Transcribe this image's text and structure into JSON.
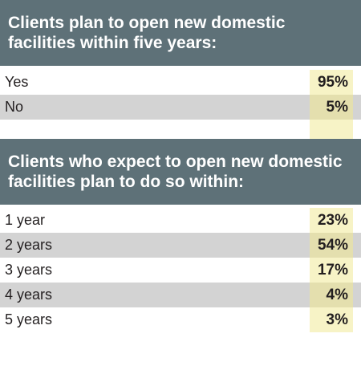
{
  "chart_data": [
    {
      "type": "table",
      "title": "Clients plan to open new domestic facilities within five years:",
      "title_lines": [
        "Clients plan to open new domestic",
        "facilities within five years:"
      ],
      "rows": [
        {
          "label": "Yes",
          "value": "95%"
        },
        {
          "label": "No",
          "value": "5%"
        }
      ],
      "values": [
        95,
        5
      ],
      "categories": [
        "Yes",
        "No"
      ]
    },
    {
      "type": "table",
      "title": "Clients who expect to open new domestic facilities plan to do so within:",
      "title_lines": [
        "Clients who expect to open new domestic",
        "facilities plan to do so within:"
      ],
      "rows": [
        {
          "label": "1 year",
          "value": "23%"
        },
        {
          "label": "2 years",
          "value": "54%"
        },
        {
          "label": "3 years",
          "value": "17%"
        },
        {
          "label": "4 years",
          "value": "4%"
        },
        {
          "label": "5 years",
          "value": "3%"
        }
      ],
      "values": [
        23,
        54,
        17,
        4,
        3
      ],
      "categories": [
        "1 year",
        "2 years",
        "3 years",
        "4 years",
        "5 years"
      ]
    }
  ],
  "colors": {
    "header_bg": "#5e7178",
    "row_shaded": "#d3d3d3",
    "value_highlight": "#f7f3c6",
    "value_highlight_shaded": "#e4dfae"
  }
}
